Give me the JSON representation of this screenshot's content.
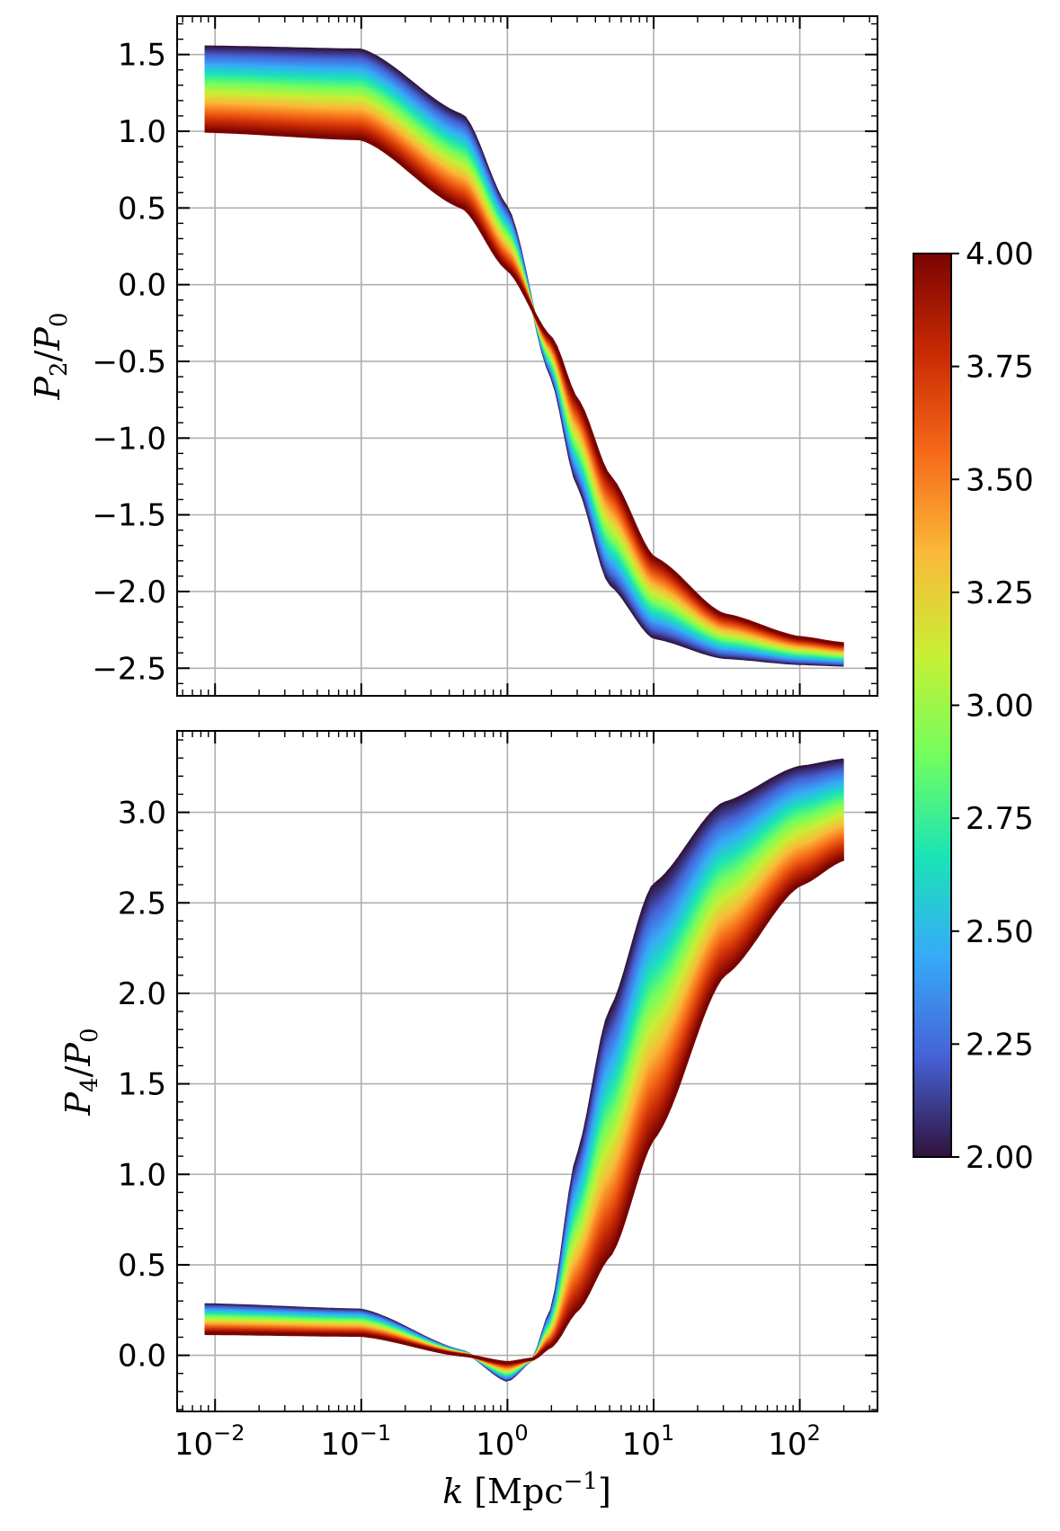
{
  "colors": {
    "colormap": [
      "#30123b",
      "#4662d7",
      "#36aaf9",
      "#1ae4b6",
      "#72fe5e",
      "#c8ef34",
      "#faba39",
      "#f66b19",
      "#ca2a04",
      "#7a0403"
    ],
    "grid": "#b0b0b0",
    "frame": "#000000"
  },
  "chart_data": [
    {
      "type": "area",
      "panel": "top",
      "ylabel_main": "P",
      "ylabel_num_sub": "2",
      "ylabel_sep": "/",
      "ylabel_den": "P",
      "ylabel_den_sub": "0",
      "xscale": "log",
      "xlim": [
        0.0055,
        340
      ],
      "ylim": [
        -2.68,
        1.75
      ],
      "yticks": [
        {
          "value": 1.5,
          "label": "1.5"
        },
        {
          "value": 1.0,
          "label": "1.0"
        },
        {
          "value": 0.5,
          "label": "0.5"
        },
        {
          "value": 0.0,
          "label": "0.0"
        },
        {
          "value": -0.5,
          "label": "−0.5"
        },
        {
          "value": -1.0,
          "label": "−1.0"
        },
        {
          "value": -1.5,
          "label": "−1.5"
        },
        {
          "value": -2.0,
          "label": "−2.0"
        },
        {
          "value": -2.5,
          "label": "−2.5"
        }
      ],
      "grid": true,
      "k_range": [
        0.0085,
        200
      ],
      "band": {
        "description_param": "color parameter from 2.00 (dark purple) to 4.00 (dark red)",
        "param_min_curve": {
          "param": 2.0,
          "k": [
            0.0085,
            0.1,
            0.5,
            1.0,
            2.0,
            3.0,
            5.0,
            10,
            30,
            100,
            200
          ],
          "y": [
            1.55,
            1.53,
            1.1,
            0.5,
            -0.6,
            -1.3,
            -1.95,
            -2.3,
            -2.43,
            -2.47,
            -2.48
          ]
        },
        "param_max_curve": {
          "param": 4.0,
          "k": [
            0.0085,
            0.1,
            0.5,
            1.0,
            2.0,
            3.0,
            5.0,
            10,
            30,
            100,
            200
          ],
          "y": [
            1.0,
            0.95,
            0.5,
            0.1,
            -0.35,
            -0.75,
            -1.25,
            -1.78,
            -2.15,
            -2.3,
            -2.34
          ]
        }
      }
    },
    {
      "type": "area",
      "panel": "bottom",
      "ylabel_main": "P",
      "ylabel_num_sub": "4",
      "ylabel_sep": "/",
      "ylabel_den": "P",
      "ylabel_den_sub": "0",
      "xlabel_main": "k",
      "xlabel_unit": "Mpc",
      "xlabel_exp": "−1",
      "xscale": "log",
      "xlim": [
        0.0055,
        340
      ],
      "ylim": [
        -0.31,
        3.45
      ],
      "xticks": [
        {
          "value": 0.01,
          "base": "10",
          "exp": "−2"
        },
        {
          "value": 0.1,
          "base": "10",
          "exp": "−1"
        },
        {
          "value": 1,
          "base": "10",
          "exp": "0"
        },
        {
          "value": 10,
          "base": "10",
          "exp": "1"
        },
        {
          "value": 100,
          "base": "10",
          "exp": "2"
        }
      ],
      "yticks": [
        {
          "value": 3.0,
          "label": "3.0"
        },
        {
          "value": 2.5,
          "label": "2.5"
        },
        {
          "value": 2.0,
          "label": "2.0"
        },
        {
          "value": 1.5,
          "label": "1.5"
        },
        {
          "value": 1.0,
          "label": "1.0"
        },
        {
          "value": 0.5,
          "label": "0.5"
        },
        {
          "value": 0.0,
          "label": "0.0"
        }
      ],
      "grid": true,
      "k_range": [
        0.0085,
        200
      ],
      "band": {
        "param_min_curve": {
          "param": 2.0,
          "k": [
            0.0085,
            0.1,
            0.5,
            1.0,
            1.5,
            2.0,
            3.0,
            5.0,
            10,
            30,
            100,
            200
          ],
          "y": [
            0.28,
            0.25,
            0.02,
            -0.14,
            -0.02,
            0.25,
            1.1,
            1.9,
            2.6,
            3.05,
            3.25,
            3.29
          ]
        },
        "param_max_curve": {
          "param": 4.0,
          "k": [
            0.0085,
            0.1,
            0.5,
            1.0,
            1.5,
            2.0,
            3.0,
            5.0,
            10,
            30,
            100,
            200
          ],
          "y": [
            0.12,
            0.11,
            0.0,
            -0.04,
            -0.02,
            0.05,
            0.25,
            0.55,
            1.2,
            2.1,
            2.6,
            2.74
          ]
        }
      }
    }
  ],
  "colorbar": {
    "min": 2.0,
    "max": 4.0,
    "ticks": [
      {
        "value": 4.0,
        "label": "4.00"
      },
      {
        "value": 3.75,
        "label": "3.75"
      },
      {
        "value": 3.5,
        "label": "3.50"
      },
      {
        "value": 3.25,
        "label": "3.25"
      },
      {
        "value": 3.0,
        "label": "3.00"
      },
      {
        "value": 2.75,
        "label": "2.75"
      },
      {
        "value": 2.5,
        "label": "2.50"
      },
      {
        "value": 2.25,
        "label": "2.25"
      },
      {
        "value": 2.0,
        "label": "2.00"
      }
    ]
  }
}
